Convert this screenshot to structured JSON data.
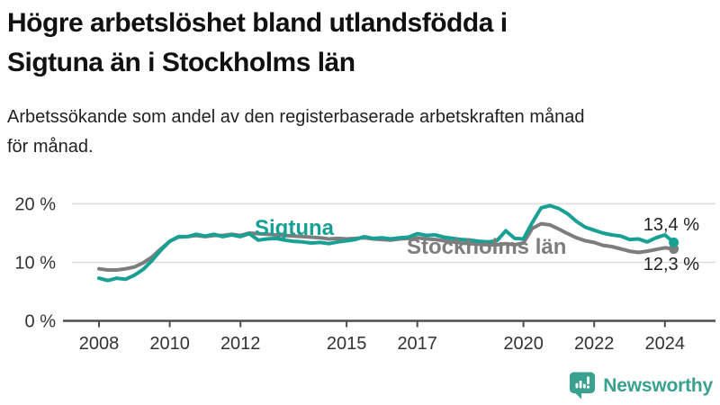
{
  "title_lines": [
    "Högre arbetslöshet bland utlandsfödda i",
    "Sigtuna än i Stockholms län"
  ],
  "subtitle_lines": [
    "Arbetssökande som andel av den registerbaserade arbetskraften månad",
    "för månad."
  ],
  "branding": {
    "logo_text": "Newsworthy",
    "logo_icon": "bar-chart-speech-bubble-icon",
    "logo_color": "#3aa08f"
  },
  "colors": {
    "sigtuna_line": "#18a095",
    "stockholm_line": "#7d7d7d",
    "axis_line": "#4d4d4d",
    "gridline": "#dcdcdc",
    "axis_text": "#333333",
    "end_label_text": "#222222"
  },
  "chart_data": {
    "type": "line",
    "title": "Högre arbetslöshet bland utlandsfödda i Sigtuna än i Stockholms län",
    "subtitle": "Arbetssökande som andel av den registerbaserade arbetskraften månad för månad.",
    "unit": "%",
    "xlabel": "",
    "ylabel": "",
    "grid": "horizontal",
    "legend_position": "inline-labels",
    "x_axis": {
      "ticks": [
        2008,
        2010,
        2012,
        2015,
        2017,
        2020,
        2022,
        2024
      ],
      "range": [
        2007.7,
        2024.9
      ]
    },
    "y_axis": {
      "ticks": [
        0,
        10,
        20
      ],
      "tick_labels": [
        "0 %",
        "10 %",
        "20 %"
      ],
      "range": [
        0,
        22
      ]
    },
    "series": [
      {
        "name": "Sigtuna",
        "color": "#18a095",
        "end_label": "13,4 %",
        "end_value": 13.4,
        "points": [
          [
            2008.0,
            7.3
          ],
          [
            2008.25,
            6.9
          ],
          [
            2008.5,
            7.3
          ],
          [
            2008.75,
            7.1
          ],
          [
            2009.0,
            7.8
          ],
          [
            2009.25,
            8.8
          ],
          [
            2009.5,
            10.3
          ],
          [
            2009.75,
            12.1
          ],
          [
            2010.0,
            13.6
          ],
          [
            2010.25,
            14.4
          ],
          [
            2010.5,
            14.4
          ],
          [
            2010.75,
            14.8
          ],
          [
            2011.0,
            14.5
          ],
          [
            2011.25,
            14.8
          ],
          [
            2011.5,
            14.4
          ],
          [
            2011.75,
            14.7
          ],
          [
            2012.0,
            14.4
          ],
          [
            2012.25,
            14.9
          ],
          [
            2012.5,
            13.8
          ],
          [
            2012.75,
            14.0
          ],
          [
            2013.0,
            14.1
          ],
          [
            2013.25,
            13.8
          ],
          [
            2013.5,
            13.6
          ],
          [
            2013.75,
            13.5
          ],
          [
            2014.0,
            13.3
          ],
          [
            2014.25,
            13.4
          ],
          [
            2014.5,
            13.2
          ],
          [
            2014.75,
            13.5
          ],
          [
            2015.0,
            13.7
          ],
          [
            2015.25,
            13.9
          ],
          [
            2015.5,
            14.4
          ],
          [
            2015.75,
            14.1
          ],
          [
            2016.0,
            14.2
          ],
          [
            2016.25,
            14.0
          ],
          [
            2016.5,
            14.2
          ],
          [
            2016.75,
            14.3
          ],
          [
            2017.0,
            14.9
          ],
          [
            2017.25,
            14.6
          ],
          [
            2017.5,
            14.7
          ],
          [
            2017.75,
            14.3
          ],
          [
            2018.0,
            14.1
          ],
          [
            2018.25,
            13.9
          ],
          [
            2018.5,
            13.8
          ],
          [
            2018.75,
            13.6
          ],
          [
            2019.0,
            13.5
          ],
          [
            2019.25,
            13.7
          ],
          [
            2019.5,
            15.4
          ],
          [
            2019.75,
            14.1
          ],
          [
            2020.0,
            14.0
          ],
          [
            2020.25,
            16.8
          ],
          [
            2020.5,
            19.3
          ],
          [
            2020.75,
            19.7
          ],
          [
            2021.0,
            19.2
          ],
          [
            2021.25,
            18.3
          ],
          [
            2021.5,
            17.0
          ],
          [
            2021.75,
            16.0
          ],
          [
            2022.0,
            15.5
          ],
          [
            2022.25,
            15.0
          ],
          [
            2022.5,
            14.7
          ],
          [
            2022.75,
            14.5
          ],
          [
            2023.0,
            13.9
          ],
          [
            2023.25,
            14.0
          ],
          [
            2023.5,
            13.5
          ],
          [
            2023.75,
            14.2
          ],
          [
            2024.0,
            14.7
          ],
          [
            2024.25,
            13.4
          ]
        ]
      },
      {
        "name": "Stockholms län",
        "color": "#7d7d7d",
        "end_label": "12,3 %",
        "end_value": 12.3,
        "points": [
          [
            2008.0,
            8.9
          ],
          [
            2008.25,
            8.7
          ],
          [
            2008.5,
            8.7
          ],
          [
            2008.75,
            8.9
          ],
          [
            2009.0,
            9.2
          ],
          [
            2009.25,
            9.9
          ],
          [
            2009.5,
            10.9
          ],
          [
            2009.75,
            12.3
          ],
          [
            2010.0,
            13.6
          ],
          [
            2010.25,
            14.3
          ],
          [
            2010.5,
            14.4
          ],
          [
            2010.75,
            14.6
          ],
          [
            2011.0,
            14.4
          ],
          [
            2011.25,
            14.6
          ],
          [
            2011.5,
            14.6
          ],
          [
            2011.75,
            14.8
          ],
          [
            2012.0,
            14.6
          ],
          [
            2012.25,
            15.0
          ],
          [
            2012.5,
            14.9
          ],
          [
            2012.75,
            14.8
          ],
          [
            2013.0,
            14.7
          ],
          [
            2013.25,
            14.6
          ],
          [
            2013.5,
            14.5
          ],
          [
            2013.75,
            14.4
          ],
          [
            2014.0,
            14.3
          ],
          [
            2014.25,
            14.2
          ],
          [
            2014.5,
            14.0
          ],
          [
            2014.75,
            14.1
          ],
          [
            2015.0,
            14.0
          ],
          [
            2015.25,
            14.1
          ],
          [
            2015.5,
            14.2
          ],
          [
            2015.75,
            14.0
          ],
          [
            2016.0,
            13.9
          ],
          [
            2016.25,
            13.8
          ],
          [
            2016.5,
            14.0
          ],
          [
            2016.75,
            14.1
          ],
          [
            2017.0,
            14.2
          ],
          [
            2017.25,
            14.0
          ],
          [
            2017.5,
            13.9
          ],
          [
            2017.75,
            13.7
          ],
          [
            2018.0,
            13.5
          ],
          [
            2018.25,
            13.3
          ],
          [
            2018.5,
            13.2
          ],
          [
            2018.75,
            13.1
          ],
          [
            2019.0,
            13.0
          ],
          [
            2019.25,
            13.0
          ],
          [
            2019.5,
            13.2
          ],
          [
            2019.75,
            13.0
          ],
          [
            2020.0,
            13.3
          ],
          [
            2020.25,
            15.8
          ],
          [
            2020.5,
            16.6
          ],
          [
            2020.75,
            16.4
          ],
          [
            2021.0,
            15.7
          ],
          [
            2021.25,
            14.9
          ],
          [
            2021.5,
            14.2
          ],
          [
            2021.75,
            13.7
          ],
          [
            2022.0,
            13.4
          ],
          [
            2022.25,
            12.9
          ],
          [
            2022.5,
            12.7
          ],
          [
            2022.75,
            12.3
          ],
          [
            2023.0,
            11.9
          ],
          [
            2023.25,
            11.7
          ],
          [
            2023.5,
            11.9
          ],
          [
            2023.75,
            12.2
          ],
          [
            2024.0,
            12.5
          ],
          [
            2024.25,
            12.3
          ]
        ]
      }
    ]
  }
}
